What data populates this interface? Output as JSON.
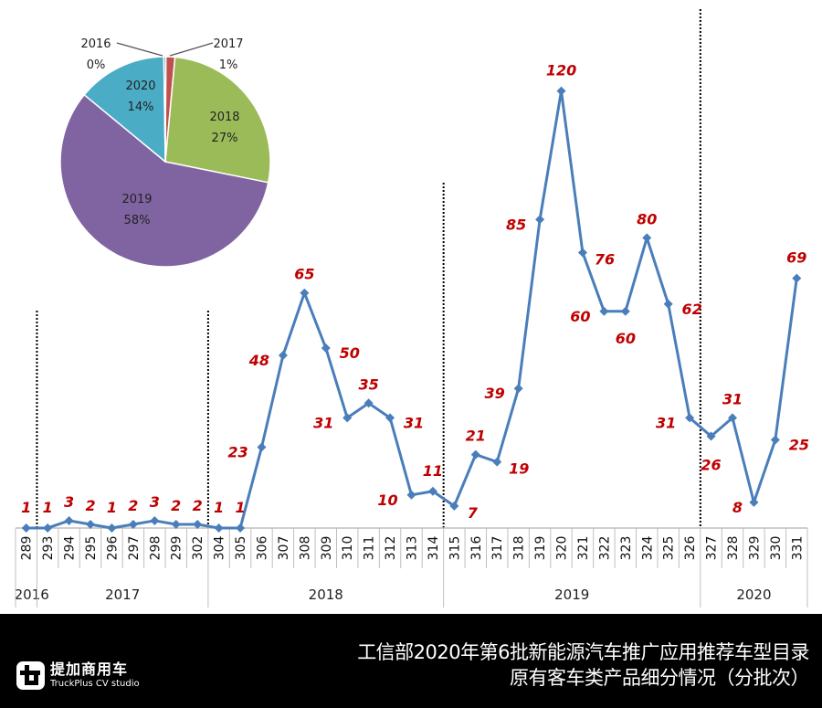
{
  "chart_data": [
    {
      "type": "pie",
      "title": "",
      "slices": [
        {
          "label": "2016",
          "value_pct": 0,
          "display": "0%",
          "color": "#4f81bd"
        },
        {
          "label": "2017",
          "value_pct": 1,
          "display": "1%",
          "color": "#c0504d"
        },
        {
          "label": "2018",
          "value_pct": 27,
          "display": "27%",
          "color": "#9bbb59"
        },
        {
          "label": "2019",
          "value_pct": 58,
          "display": "58%",
          "color": "#8064a2"
        },
        {
          "label": "2020",
          "value_pct": 14,
          "display": "14%",
          "color": "#4bacc6"
        }
      ]
    },
    {
      "type": "line",
      "title": "",
      "xlabel": "",
      "ylabel": "",
      "ylim": [
        0,
        120
      ],
      "grid": false,
      "categories": [
        "289",
        "293",
        "294",
        "295",
        "296",
        "297",
        "298",
        "299",
        "302",
        "304",
        "305",
        "306",
        "307",
        "308",
        "309",
        "310",
        "311",
        "312",
        "313",
        "314",
        "315",
        "316",
        "317",
        "318",
        "319",
        "320",
        "321",
        "322",
        "323",
        "324",
        "325",
        "326",
        "327",
        "328",
        "329",
        "330",
        "331"
      ],
      "series": [
        {
          "name": "原有客车类产品",
          "color": "#4a7ebb",
          "values": [
            1,
            1,
            3,
            2,
            1,
            2,
            3,
            2,
            2,
            1,
            1,
            23,
            48,
            65,
            50,
            31,
            35,
            31,
            10,
            11,
            7,
            21,
            19,
            39,
            85,
            120,
            76,
            60,
            60,
            80,
            62,
            31,
            26,
            31,
            8,
            25,
            69
          ]
        }
      ],
      "groups": [
        {
          "label": "2016",
          "start": 0,
          "end": 0
        },
        {
          "label": "2017",
          "start": 1,
          "end": 8
        },
        {
          "label": "2018",
          "start": 9,
          "end": 19
        },
        {
          "label": "2019",
          "start": 20,
          "end": 31
        },
        {
          "label": "2020",
          "start": 32,
          "end": 36
        }
      ],
      "label_color": "#c00000"
    }
  ],
  "footer": {
    "title_line1": "工信部2020年第6批新能源汽车推广应用推荐车型目录",
    "title_line2": "原有客车类产品细分情况（分批次）",
    "logo_cn": "提加商用车",
    "logo_en": "TruckPlus CV studio"
  }
}
